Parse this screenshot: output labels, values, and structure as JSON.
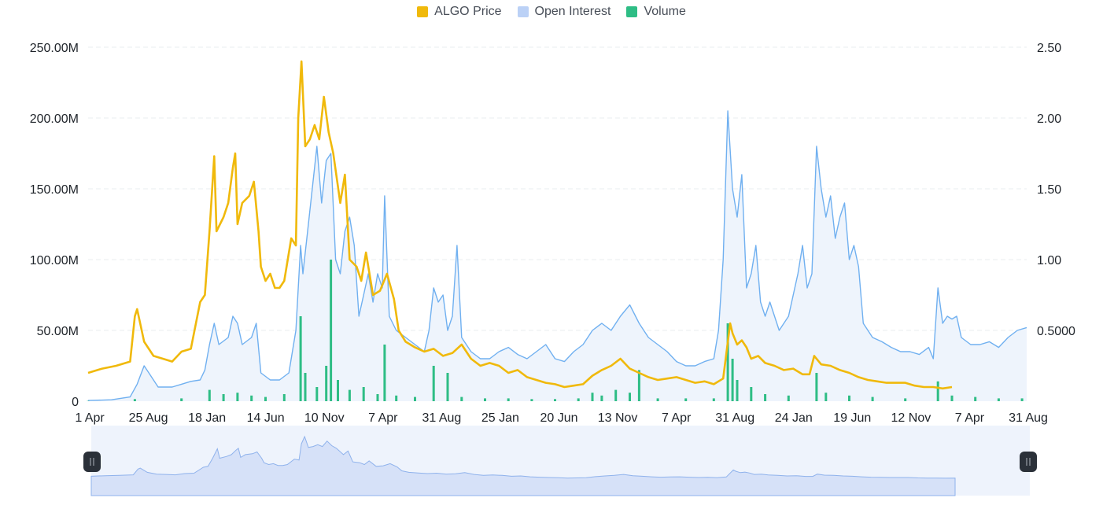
{
  "legend": [
    {
      "label": "ALGO Price",
      "color": "#F0B90B"
    },
    {
      "label": "Open Interest",
      "color": "#BBD1F6"
    },
    {
      "label": "Volume",
      "color": "#2EBD85"
    }
  ],
  "chart_data": {
    "type": "line",
    "title": "",
    "legend_position": "top-center",
    "grid": true,
    "x_tick_labels": [
      "1 Apr",
      "25 Aug",
      "18 Jan",
      "14 Jun",
      "10 Nov",
      "7 Apr",
      "31 Aug",
      "25 Jan",
      "20 Jun",
      "13 Nov",
      "7 Apr",
      "31 Aug",
      "24 Jan",
      "19 Jun",
      "12 Nov",
      "7 Apr",
      "31 Aug"
    ],
    "y_left": {
      "label": "",
      "ticks": [
        "0",
        "50.00M",
        "100.00M",
        "150.00M",
        "200.00M",
        "250.00M"
      ],
      "range": [
        0,
        250000000
      ]
    },
    "y_right": {
      "label": "",
      "ticks": [
        "0.5000",
        "1.00",
        "1.50",
        "2.00",
        "2.50"
      ],
      "range": [
        0,
        2.5
      ]
    },
    "x_index_range": [
      0,
      16
    ],
    "series": [
      {
        "name": "ALGO Price",
        "axis": "right",
        "color": "#F0B90B",
        "style": "line",
        "points": [
          [
            0,
            0.2
          ],
          [
            0.3,
            0.23
          ],
          [
            0.6,
            0.25
          ],
          [
            0.9,
            0.28
          ],
          [
            1.0,
            0.6
          ],
          [
            1.05,
            0.65
          ],
          [
            1.2,
            0.42
          ],
          [
            1.4,
            0.32
          ],
          [
            1.6,
            0.3
          ],
          [
            1.8,
            0.28
          ],
          [
            2.0,
            0.35
          ],
          [
            2.2,
            0.37
          ],
          [
            2.4,
            0.7
          ],
          [
            2.5,
            0.75
          ],
          [
            2.6,
            1.2
          ],
          [
            2.7,
            1.73
          ],
          [
            2.75,
            1.2
          ],
          [
            2.9,
            1.3
          ],
          [
            3.0,
            1.4
          ],
          [
            3.1,
            1.65
          ],
          [
            3.15,
            1.75
          ],
          [
            3.2,
            1.25
          ],
          [
            3.3,
            1.4
          ],
          [
            3.45,
            1.45
          ],
          [
            3.55,
            1.55
          ],
          [
            3.65,
            1.2
          ],
          [
            3.7,
            0.95
          ],
          [
            3.8,
            0.85
          ],
          [
            3.9,
            0.9
          ],
          [
            4.0,
            0.8
          ],
          [
            4.1,
            0.8
          ],
          [
            4.2,
            0.85
          ],
          [
            4.35,
            1.15
          ],
          [
            4.45,
            1.1
          ],
          [
            4.5,
            2.0
          ],
          [
            4.57,
            2.4
          ],
          [
            4.65,
            1.8
          ],
          [
            4.75,
            1.85
          ],
          [
            4.85,
            1.95
          ],
          [
            4.95,
            1.85
          ],
          [
            5.05,
            2.15
          ],
          [
            5.15,
            1.9
          ],
          [
            5.25,
            1.75
          ],
          [
            5.4,
            1.4
          ],
          [
            5.5,
            1.6
          ],
          [
            5.6,
            1.0
          ],
          [
            5.75,
            0.95
          ],
          [
            5.85,
            0.85
          ],
          [
            5.95,
            1.05
          ],
          [
            6.1,
            0.75
          ],
          [
            6.25,
            0.78
          ],
          [
            6.4,
            0.9
          ],
          [
            6.55,
            0.72
          ],
          [
            6.65,
            0.5
          ],
          [
            6.8,
            0.42
          ],
          [
            7.0,
            0.38
          ],
          [
            7.2,
            0.35
          ],
          [
            7.4,
            0.37
          ],
          [
            7.6,
            0.32
          ],
          [
            7.8,
            0.34
          ],
          [
            8.0,
            0.4
          ],
          [
            8.2,
            0.3
          ],
          [
            8.4,
            0.25
          ],
          [
            8.6,
            0.27
          ],
          [
            8.8,
            0.25
          ],
          [
            9.0,
            0.2
          ],
          [
            9.2,
            0.22
          ],
          [
            9.4,
            0.17
          ],
          [
            9.6,
            0.15
          ],
          [
            9.8,
            0.13
          ],
          [
            10.0,
            0.12
          ],
          [
            10.2,
            0.1
          ],
          [
            10.4,
            0.11
          ],
          [
            10.6,
            0.12
          ],
          [
            10.8,
            0.18
          ],
          [
            11.0,
            0.22
          ],
          [
            11.2,
            0.25
          ],
          [
            11.4,
            0.3
          ],
          [
            11.6,
            0.23
          ],
          [
            11.8,
            0.2
          ],
          [
            12.0,
            0.17
          ],
          [
            12.2,
            0.15
          ],
          [
            12.4,
            0.16
          ],
          [
            12.6,
            0.17
          ],
          [
            12.8,
            0.15
          ],
          [
            13.0,
            0.13
          ],
          [
            13.2,
            0.14
          ],
          [
            13.4,
            0.12
          ],
          [
            13.6,
            0.16
          ],
          [
            13.75,
            0.55
          ],
          [
            13.8,
            0.48
          ],
          [
            13.9,
            0.4
          ],
          [
            14.0,
            0.43
          ],
          [
            14.1,
            0.38
          ],
          [
            14.2,
            0.3
          ],
          [
            14.35,
            0.32
          ],
          [
            14.5,
            0.27
          ],
          [
            14.7,
            0.25
          ],
          [
            14.9,
            0.22
          ],
          [
            15.1,
            0.23
          ],
          [
            15.3,
            0.19
          ],
          [
            15.45,
            0.19
          ],
          [
            15.55,
            0.32
          ],
          [
            15.7,
            0.26
          ],
          [
            15.9,
            0.25
          ],
          [
            16.1,
            0.22
          ],
          [
            16.3,
            0.2
          ],
          [
            16.5,
            0.17
          ],
          [
            16.7,
            0.15
          ],
          [
            16.9,
            0.14
          ],
          [
            17.1,
            0.13
          ],
          [
            17.3,
            0.13
          ],
          [
            17.5,
            0.13
          ],
          [
            17.7,
            0.11
          ],
          [
            17.9,
            0.1
          ],
          [
            18.1,
            0.1
          ],
          [
            18.3,
            0.09
          ],
          [
            18.5,
            0.1
          ]
        ]
      },
      {
        "name": "Open Interest",
        "axis": "left",
        "color": "#70B0F0",
        "fill": "#EEF4FC",
        "style": "area",
        "points": [
          [
            0,
            0.5
          ],
          [
            0.5,
            1
          ],
          [
            0.9,
            3
          ],
          [
            1.05,
            12
          ],
          [
            1.2,
            25
          ],
          [
            1.3,
            20
          ],
          [
            1.5,
            10
          ],
          [
            1.8,
            10
          ],
          [
            2.0,
            12
          ],
          [
            2.2,
            14
          ],
          [
            2.4,
            15
          ],
          [
            2.5,
            22
          ],
          [
            2.6,
            40
          ],
          [
            2.7,
            55
          ],
          [
            2.8,
            40
          ],
          [
            3.0,
            45
          ],
          [
            3.1,
            60
          ],
          [
            3.2,
            55
          ],
          [
            3.3,
            40
          ],
          [
            3.5,
            45
          ],
          [
            3.6,
            55
          ],
          [
            3.7,
            20
          ],
          [
            3.9,
            15
          ],
          [
            4.1,
            15
          ],
          [
            4.3,
            20
          ],
          [
            4.45,
            50
          ],
          [
            4.55,
            110
          ],
          [
            4.6,
            90
          ],
          [
            4.7,
            120
          ],
          [
            4.8,
            150
          ],
          [
            4.9,
            180
          ],
          [
            5.0,
            140
          ],
          [
            5.1,
            170
          ],
          [
            5.2,
            175
          ],
          [
            5.3,
            100
          ],
          [
            5.4,
            90
          ],
          [
            5.5,
            120
          ],
          [
            5.6,
            130
          ],
          [
            5.7,
            110
          ],
          [
            5.8,
            60
          ],
          [
            5.9,
            75
          ],
          [
            6.0,
            90
          ],
          [
            6.1,
            70
          ],
          [
            6.2,
            90
          ],
          [
            6.3,
            80
          ],
          [
            6.35,
            145
          ],
          [
            6.45,
            60
          ],
          [
            6.6,
            50
          ],
          [
            6.8,
            45
          ],
          [
            7.0,
            40
          ],
          [
            7.2,
            35
          ],
          [
            7.3,
            50
          ],
          [
            7.4,
            80
          ],
          [
            7.5,
            70
          ],
          [
            7.6,
            75
          ],
          [
            7.7,
            50
          ],
          [
            7.8,
            60
          ],
          [
            7.9,
            110
          ],
          [
            8.0,
            45
          ],
          [
            8.2,
            35
          ],
          [
            8.4,
            30
          ],
          [
            8.6,
            30
          ],
          [
            8.8,
            35
          ],
          [
            9.0,
            38
          ],
          [
            9.2,
            33
          ],
          [
            9.4,
            30
          ],
          [
            9.6,
            35
          ],
          [
            9.8,
            40
          ],
          [
            10.0,
            30
          ],
          [
            10.2,
            28
          ],
          [
            10.4,
            35
          ],
          [
            10.6,
            40
          ],
          [
            10.8,
            50
          ],
          [
            11.0,
            55
          ],
          [
            11.2,
            50
          ],
          [
            11.4,
            60
          ],
          [
            11.6,
            68
          ],
          [
            11.8,
            55
          ],
          [
            12.0,
            45
          ],
          [
            12.2,
            40
          ],
          [
            12.4,
            35
          ],
          [
            12.6,
            28
          ],
          [
            12.8,
            25
          ],
          [
            13.0,
            25
          ],
          [
            13.2,
            28
          ],
          [
            13.4,
            30
          ],
          [
            13.5,
            50
          ],
          [
            13.6,
            100
          ],
          [
            13.7,
            205
          ],
          [
            13.8,
            150
          ],
          [
            13.9,
            130
          ],
          [
            14.0,
            160
          ],
          [
            14.1,
            80
          ],
          [
            14.2,
            90
          ],
          [
            14.3,
            110
          ],
          [
            14.4,
            70
          ],
          [
            14.5,
            60
          ],
          [
            14.6,
            70
          ],
          [
            14.7,
            60
          ],
          [
            14.8,
            50
          ],
          [
            15.0,
            60
          ],
          [
            15.2,
            90
          ],
          [
            15.3,
            110
          ],
          [
            15.4,
            80
          ],
          [
            15.5,
            90
          ],
          [
            15.6,
            180
          ],
          [
            15.7,
            150
          ],
          [
            15.8,
            130
          ],
          [
            15.9,
            145
          ],
          [
            16.0,
            115
          ],
          [
            16.1,
            130
          ],
          [
            16.2,
            140
          ],
          [
            16.3,
            100
          ],
          [
            16.4,
            110
          ],
          [
            16.5,
            95
          ],
          [
            16.6,
            55
          ],
          [
            16.8,
            45
          ],
          [
            17.0,
            42
          ],
          [
            17.2,
            38
          ],
          [
            17.4,
            35
          ],
          [
            17.6,
            35
          ],
          [
            17.8,
            33
          ],
          [
            18.0,
            38
          ],
          [
            18.1,
            30
          ],
          [
            18.2,
            80
          ],
          [
            18.3,
            55
          ],
          [
            18.4,
            60
          ],
          [
            18.5,
            58
          ],
          [
            18.6,
            60
          ],
          [
            18.7,
            45
          ],
          [
            18.9,
            40
          ],
          [
            19.1,
            40
          ],
          [
            19.3,
            42
          ],
          [
            19.5,
            38
          ],
          [
            19.7,
            45
          ],
          [
            19.9,
            50
          ],
          [
            20.1,
            52
          ]
        ]
      },
      {
        "name": "Volume",
        "axis": "left",
        "color": "#2EBD85",
        "style": "bars",
        "points": [
          [
            0,
            0.2
          ],
          [
            1.0,
            1.5
          ],
          [
            2.0,
            2
          ],
          [
            2.6,
            8
          ],
          [
            2.9,
            5
          ],
          [
            3.2,
            6
          ],
          [
            3.5,
            4
          ],
          [
            3.8,
            3
          ],
          [
            4.2,
            5
          ],
          [
            4.55,
            60
          ],
          [
            4.65,
            20
          ],
          [
            4.9,
            10
          ],
          [
            5.1,
            25
          ],
          [
            5.2,
            100
          ],
          [
            5.35,
            15
          ],
          [
            5.6,
            8
          ],
          [
            5.9,
            10
          ],
          [
            6.2,
            5
          ],
          [
            6.35,
            40
          ],
          [
            6.6,
            4
          ],
          [
            7.0,
            3
          ],
          [
            7.4,
            25
          ],
          [
            7.7,
            20
          ],
          [
            8.0,
            3
          ],
          [
            8.5,
            2
          ],
          [
            9.0,
            2
          ],
          [
            9.5,
            1.5
          ],
          [
            10.0,
            1.5
          ],
          [
            10.5,
            2
          ],
          [
            10.8,
            6
          ],
          [
            11.0,
            4
          ],
          [
            11.3,
            8
          ],
          [
            11.6,
            6
          ],
          [
            11.8,
            22
          ],
          [
            12.2,
            2
          ],
          [
            12.8,
            2
          ],
          [
            13.4,
            2
          ],
          [
            13.7,
            55
          ],
          [
            13.8,
            30
          ],
          [
            13.9,
            15
          ],
          [
            14.2,
            10
          ],
          [
            14.5,
            5
          ],
          [
            15.0,
            4
          ],
          [
            15.6,
            20
          ],
          [
            15.8,
            6
          ],
          [
            16.3,
            4
          ],
          [
            16.8,
            3
          ],
          [
            17.5,
            2
          ],
          [
            18.2,
            14
          ],
          [
            18.5,
            4
          ],
          [
            19.0,
            3
          ],
          [
            19.5,
            2
          ],
          [
            20.0,
            2
          ]
        ]
      }
    ]
  }
}
